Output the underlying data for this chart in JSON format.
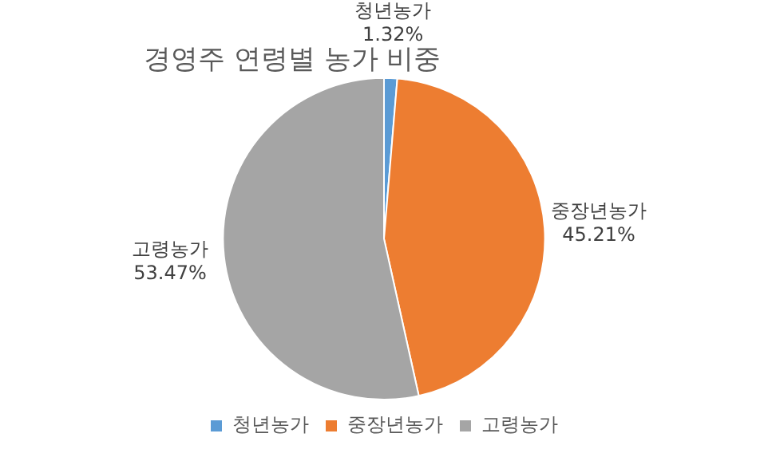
{
  "chart_data": {
    "type": "pie",
    "title": "경영주 연령별 농가 비중",
    "categories": [
      "청년농가",
      "중장년농가",
      "고령농가"
    ],
    "values": [
      1.32,
      45.21,
      53.47
    ],
    "value_labels": [
      "1.32%",
      "45.21%",
      "53.47%"
    ],
    "colors": [
      "#5b9bd5",
      "#ed7d31",
      "#a5a5a5"
    ],
    "legend": "bottom"
  }
}
